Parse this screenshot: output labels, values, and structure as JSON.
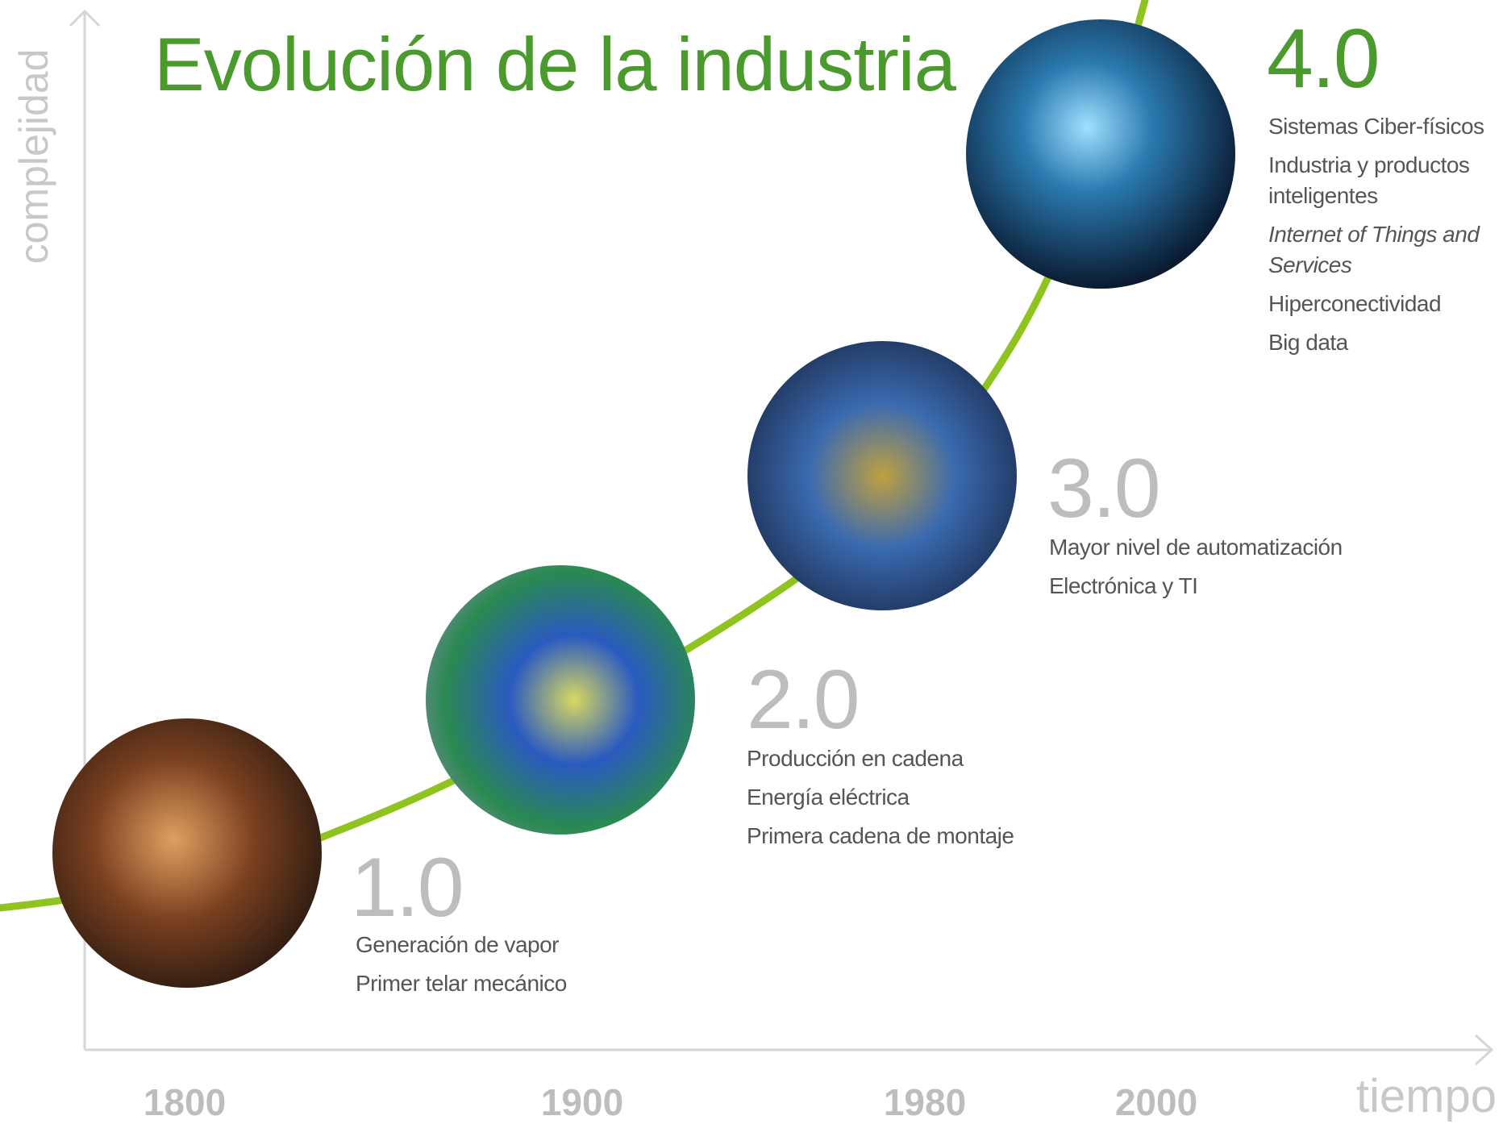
{
  "title": "Evolución de la industria",
  "y_axis_label": "complejidad",
  "x_axis_label": "tiempo",
  "years": [
    "1800",
    "1900",
    "1980",
    "2000"
  ],
  "stages": [
    {
      "label": "1.0",
      "items": [
        {
          "lines": [
            "Generación de vapor"
          ]
        },
        {
          "lines": [
            "Primer telar mecánico"
          ]
        }
      ]
    },
    {
      "label": "2.0",
      "items": [
        {
          "lines": [
            "Producción en cadena"
          ]
        },
        {
          "lines": [
            "Energía eléctrica"
          ]
        },
        {
          "lines": [
            "Primera cadena de montaje"
          ]
        }
      ]
    },
    {
      "label": "3.0",
      "items": [
        {
          "lines": [
            "Mayor nivel de automatización"
          ]
        },
        {
          "lines": [
            "Electrónica y TI"
          ]
        }
      ]
    },
    {
      "label": "4.0",
      "items": [
        {
          "lines": [
            "Sistemas Ciber-físicos"
          ]
        },
        {
          "lines": [
            "Industria y productos",
            "inteligentes"
          ]
        },
        {
          "lines": [
            "Internet of Things and",
            "Services"
          ],
          "italic": true
        },
        {
          "lines": [
            "Hiperconectividad"
          ]
        },
        {
          "lines": [
            "Big data"
          ]
        }
      ]
    }
  ]
}
